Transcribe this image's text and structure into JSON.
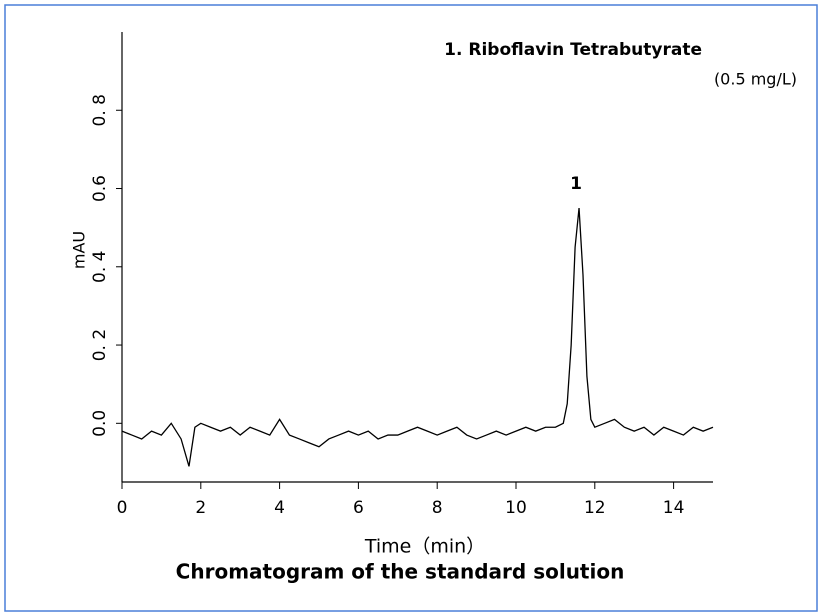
{
  "chart_data": {
    "type": "line",
    "title": "Chromatogram of the standard solution",
    "x_label": "Time（min）",
    "y_label": "mAU",
    "annotations": [
      "1. Riboflavin Tetrabutyrate",
      "(0.5 mg/L)"
    ],
    "peak_labels": [
      "1"
    ],
    "xlim": [
      0,
      15
    ],
    "xticks": [
      0,
      2,
      4,
      6,
      8,
      10,
      12,
      14
    ],
    "ylim": [
      -0.15,
      1.0
    ],
    "yticks": [
      {
        "value": 0,
        "label": "0.0"
      },
      {
        "value": 0.2,
        "label": "0. 2"
      },
      {
        "value": 0.4,
        "label": "0. 4"
      },
      {
        "value": 0.6,
        "label": "0.6"
      },
      {
        "value": 0.8,
        "label": "0. 8"
      }
    ],
    "series": [
      {
        "color": "#000000",
        "x": [
          0,
          0.25,
          0.5,
          0.75,
          1,
          1.25,
          1.5,
          1.7,
          1.85,
          2,
          2.25,
          2.5,
          2.75,
          3,
          3.25,
          3.5,
          3.75,
          4,
          4.25,
          4.5,
          4.75,
          5,
          5.25,
          5.5,
          5.75,
          6,
          6.25,
          6.5,
          6.75,
          7,
          7.25,
          7.5,
          7.75,
          8,
          8.25,
          8.5,
          8.75,
          9,
          9.25,
          9.5,
          9.75,
          10,
          10.25,
          10.5,
          10.75,
          11,
          11.2,
          11.3,
          11.4,
          11.5,
          11.6,
          11.7,
          11.8,
          11.9,
          12,
          12.25,
          12.5,
          12.75,
          13,
          13.25,
          13.5,
          13.75,
          14,
          14.25,
          14.5,
          14.75,
          15
        ],
        "values": [
          -0.02,
          -0.03,
          -0.04,
          -0.02,
          -0.03,
          0.0,
          -0.04,
          -0.11,
          -0.01,
          0.0,
          -0.01,
          -0.02,
          -0.01,
          -0.03,
          -0.01,
          -0.02,
          -0.03,
          0.01,
          -0.03,
          -0.04,
          -0.05,
          -0.06,
          -0.04,
          -0.03,
          -0.02,
          -0.03,
          -0.02,
          -0.04,
          -0.03,
          -0.03,
          -0.02,
          -0.01,
          -0.02,
          -0.03,
          -0.02,
          -0.01,
          -0.03,
          -0.04,
          -0.03,
          -0.02,
          -0.03,
          -0.02,
          -0.01,
          -0.02,
          -0.01,
          -0.01,
          0.0,
          0.05,
          0.2,
          0.45,
          0.55,
          0.38,
          0.12,
          0.01,
          -0.01,
          0.0,
          0.01,
          -0.01,
          -0.02,
          -0.01,
          -0.03,
          -0.01,
          -0.02,
          -0.03,
          -0.01,
          -0.02,
          -0.01
        ]
      }
    ]
  }
}
